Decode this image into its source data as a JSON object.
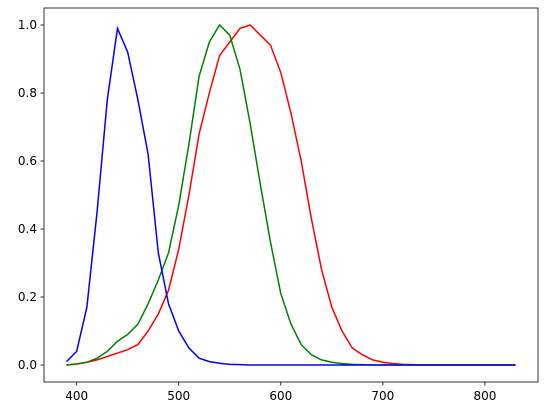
{
  "chart_data": {
    "type": "line",
    "x": [
      390,
      400,
      410,
      420,
      430,
      440,
      450,
      460,
      470,
      480,
      490,
      500,
      510,
      520,
      530,
      540,
      550,
      560,
      570,
      580,
      590,
      600,
      610,
      620,
      630,
      640,
      650,
      660,
      670,
      680,
      690,
      700,
      710,
      720,
      730,
      740,
      750,
      760,
      770,
      780,
      790,
      800,
      810,
      820,
      830
    ],
    "series": [
      {
        "color": "#ff0000",
        "values": [
          0,
          0.003,
          0.008,
          0.015,
          0.025,
          0.035,
          0.045,
          0.06,
          0.1,
          0.15,
          0.22,
          0.34,
          0.5,
          0.68,
          0.8,
          0.91,
          0.95,
          0.99,
          1.0,
          0.97,
          0.94,
          0.86,
          0.74,
          0.6,
          0.43,
          0.28,
          0.17,
          0.1,
          0.05,
          0.03,
          0.015,
          0.008,
          0.004,
          0.002,
          0.001,
          0,
          0,
          0,
          0,
          0,
          0,
          0,
          0,
          0,
          0
        ]
      },
      {
        "color": "#008000",
        "values": [
          0,
          0.003,
          0.008,
          0.02,
          0.04,
          0.07,
          0.09,
          0.12,
          0.18,
          0.25,
          0.33,
          0.47,
          0.65,
          0.85,
          0.95,
          1.0,
          0.97,
          0.87,
          0.71,
          0.53,
          0.36,
          0.21,
          0.12,
          0.06,
          0.03,
          0.015,
          0.008,
          0.004,
          0.002,
          0.001,
          0,
          0,
          0,
          0,
          0,
          0,
          0,
          0,
          0,
          0,
          0,
          0,
          0,
          0,
          0
        ]
      },
      {
        "color": "#0000ff",
        "values": [
          0.01,
          0.04,
          0.17,
          0.45,
          0.78,
          0.99,
          0.92,
          0.78,
          0.62,
          0.33,
          0.18,
          0.1,
          0.05,
          0.02,
          0.01,
          0.005,
          0.002,
          0.001,
          0,
          0,
          0,
          0,
          0,
          0,
          0,
          0,
          0,
          0,
          0,
          0,
          0,
          0,
          0,
          0,
          0,
          0,
          0,
          0,
          0,
          0,
          0,
          0,
          0,
          0,
          0
        ]
      }
    ],
    "xlim": [
      368,
      852
    ],
    "ylim": [
      -0.05,
      1.05
    ],
    "xticks": [
      400,
      500,
      600,
      700,
      800
    ],
    "yticks": [
      {
        "value": 0,
        "label": "0.0"
      },
      0.2,
      0.4,
      0.6,
      0.8,
      {
        "value": 1,
        "label": "1.0"
      }
    ]
  }
}
